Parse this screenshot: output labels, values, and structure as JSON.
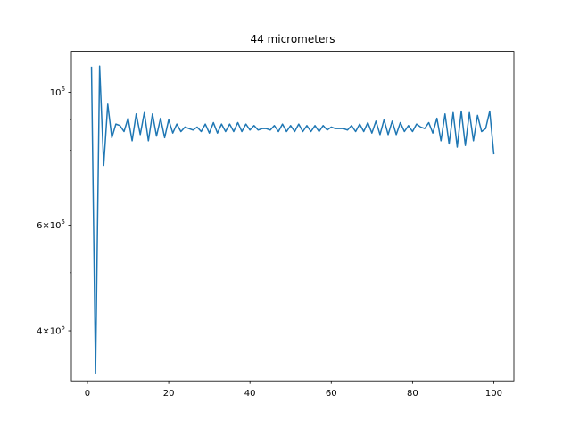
{
  "chart_data": {
    "type": "line",
    "title": "44 micrometers",
    "xlabel": "",
    "ylabel": "",
    "xlim": [
      -3.95,
      104.95
    ],
    "ylim": [
      330000,
      1170000
    ],
    "yscale": "log",
    "grid": false,
    "x_ticks": [
      0,
      20,
      40,
      60,
      80,
      100
    ],
    "x_tick_labels": [
      "0",
      "20",
      "40",
      "60",
      "80",
      "100"
    ],
    "y_major_ticks": [
      400000,
      600000,
      1000000
    ],
    "y_major_labels": [
      {
        "mantissa": "4",
        "base": "10",
        "exp": "5"
      },
      {
        "mantissa": "6",
        "base": "10",
        "exp": "5"
      },
      {
        "mantissa": "",
        "base": "10",
        "exp": "6"
      }
    ],
    "y_minor_ticks": [
      500000,
      700000,
      800000,
      900000
    ],
    "series": [
      {
        "color": "#1f77b4",
        "x": [
          1,
          2,
          3,
          4,
          5,
          6,
          7,
          8,
          9,
          10,
          11,
          12,
          13,
          14,
          15,
          16,
          17,
          18,
          19,
          20,
          21,
          22,
          23,
          24,
          25,
          26,
          27,
          28,
          29,
          30,
          31,
          32,
          33,
          34,
          35,
          36,
          37,
          38,
          39,
          40,
          41,
          42,
          43,
          44,
          45,
          46,
          47,
          48,
          49,
          50,
          51,
          52,
          53,
          54,
          55,
          56,
          57,
          58,
          59,
          60,
          61,
          62,
          63,
          64,
          65,
          66,
          67,
          68,
          69,
          70,
          71,
          72,
          73,
          74,
          75,
          76,
          77,
          78,
          79,
          80,
          81,
          82,
          83,
          84,
          85,
          86,
          87,
          88,
          89,
          90,
          91,
          92,
          93,
          94,
          95,
          96,
          97,
          98,
          99,
          100
        ],
        "y": [
          1100000,
          340000,
          1105000,
          755000,
          955000,
          840000,
          885000,
          880000,
          860000,
          905000,
          830000,
          920000,
          850000,
          925000,
          830000,
          920000,
          845000,
          905000,
          840000,
          900000,
          855000,
          885000,
          860000,
          875000,
          870000,
          865000,
          875000,
          860000,
          885000,
          855000,
          890000,
          855000,
          885000,
          860000,
          885000,
          860000,
          890000,
          860000,
          885000,
          865000,
          880000,
          865000,
          870000,
          870000,
          865000,
          880000,
          860000,
          885000,
          860000,
          880000,
          860000,
          885000,
          860000,
          880000,
          860000,
          880000,
          860000,
          880000,
          865000,
          875000,
          870000,
          870000,
          870000,
          865000,
          880000,
          860000,
          885000,
          860000,
          890000,
          855000,
          895000,
          850000,
          900000,
          850000,
          895000,
          850000,
          890000,
          860000,
          880000,
          860000,
          885000,
          875000,
          870000,
          890000,
          855000,
          905000,
          830000,
          920000,
          820000,
          925000,
          810000,
          930000,
          815000,
          925000,
          830000,
          915000,
          860000,
          870000,
          930000,
          790000
        ]
      }
    ]
  }
}
